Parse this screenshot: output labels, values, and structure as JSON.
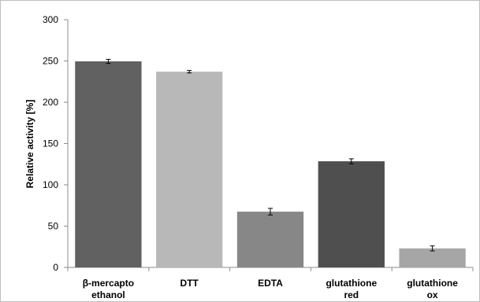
{
  "chart_data": {
    "type": "bar",
    "ylabel": "Relative activity [%]",
    "xlabel": "",
    "ylim": [
      0,
      300
    ],
    "yticks": [
      0,
      50,
      100,
      150,
      200,
      250,
      300
    ],
    "grid": false,
    "legend": "none",
    "categories": [
      [
        "β-mercapto",
        "ethanol"
      ],
      [
        "DTT"
      ],
      [
        "EDTA"
      ],
      [
        "glutathione",
        "red"
      ],
      [
        "glutathione",
        "ox"
      ]
    ],
    "values": [
      249.5,
      237,
      67.5,
      128.5,
      23
    ],
    "errors": [
      2.5,
      1.5,
      4,
      3,
      3
    ],
    "colors": [
      "#616161",
      "#b8b8b8",
      "#878787",
      "#4f4f4f",
      "#a6a6a6"
    ]
  }
}
